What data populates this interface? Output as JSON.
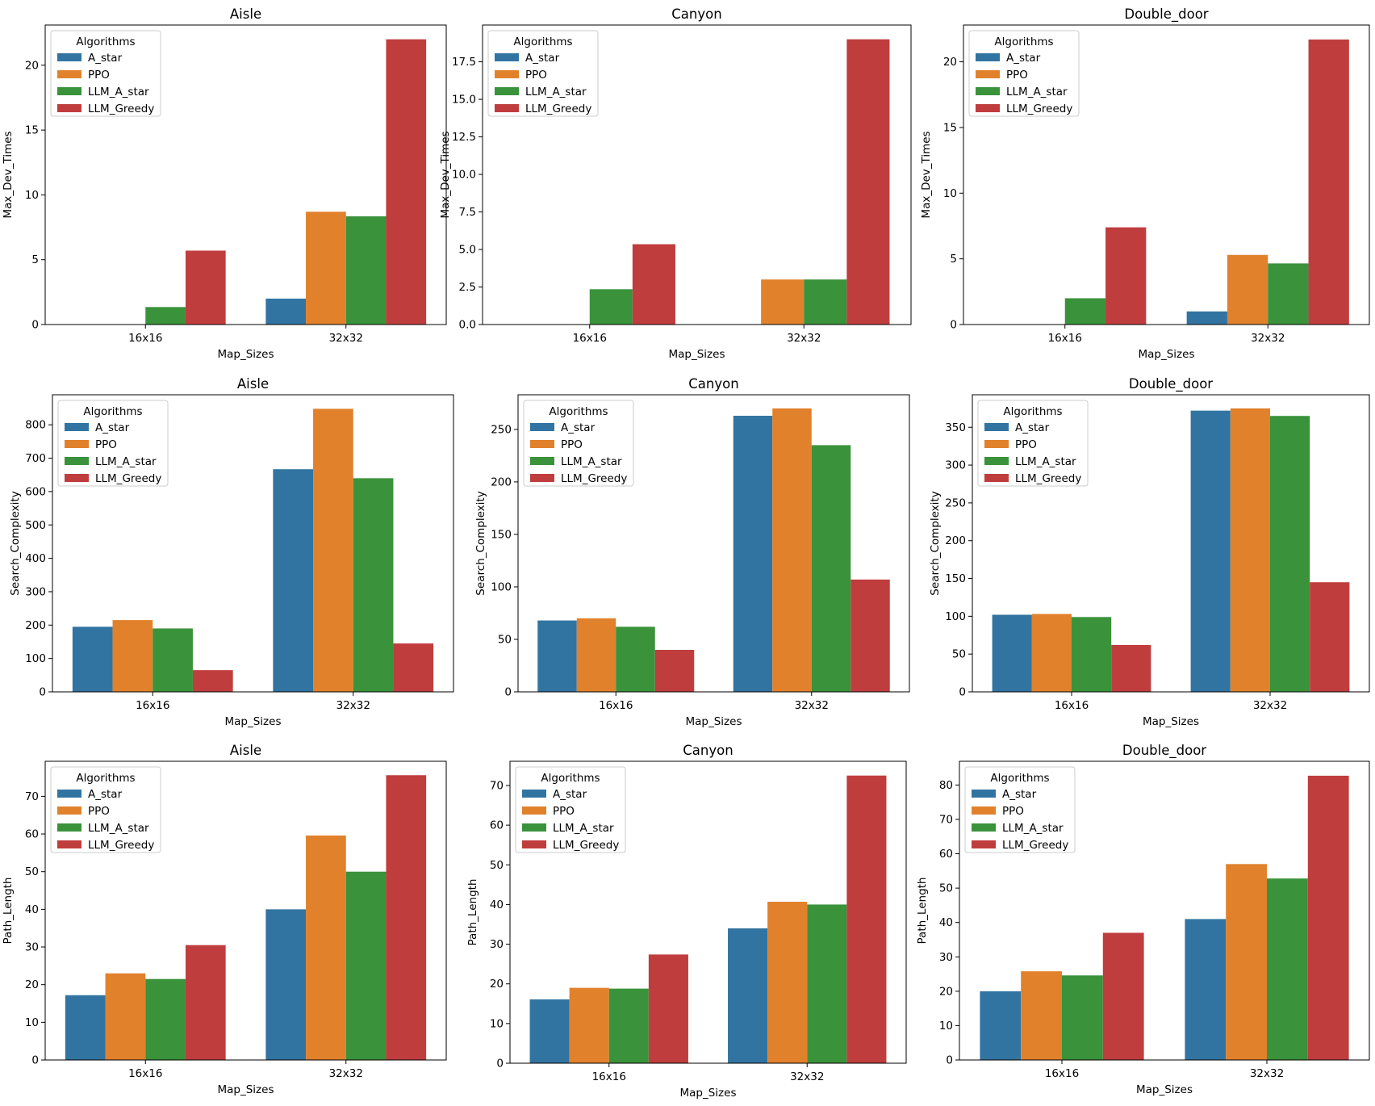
{
  "chart_data": [
    {
      "type": "bar",
      "title": "Aisle",
      "xlabel": "Map_Sizes",
      "ylabel": "Max_Dev_Times",
      "categories": [
        "16x16",
        "32x32"
      ],
      "ylim": [
        0,
        23.1
      ],
      "yticks": [
        "0",
        "5",
        "10",
        "15",
        "20"
      ],
      "legend": {
        "title": "Algorithms",
        "placement": "upper-left"
      },
      "series": [
        {
          "name": "A_star",
          "color": "#3274a1",
          "values": [
            0,
            2.0
          ]
        },
        {
          "name": "PPO",
          "color": "#e1812c",
          "values": [
            0,
            8.7
          ]
        },
        {
          "name": "LLM_A_star",
          "color": "#3a923a",
          "values": [
            1.35,
            8.35
          ]
        },
        {
          "name": "LLM_Greedy",
          "color": "#c03d3e",
          "values": [
            5.7,
            22.0
          ]
        }
      ]
    },
    {
      "type": "bar",
      "title": "Canyon",
      "xlabel": "Map_Sizes",
      "ylabel": "Max_Dev_Times",
      "categories": [
        "16x16",
        "32x32"
      ],
      "ylim": [
        0,
        19.95
      ],
      "yticks": [
        "0.0",
        "2.5",
        "5.0",
        "7.5",
        "10.0",
        "12.5",
        "15.0",
        "17.5"
      ],
      "legend": {
        "title": "Algorithms",
        "placement": "upper-left"
      },
      "series": [
        {
          "name": "A_star",
          "color": "#3274a1",
          "values": [
            0,
            0
          ]
        },
        {
          "name": "PPO",
          "color": "#e1812c",
          "values": [
            0,
            3.0
          ]
        },
        {
          "name": "LLM_A_star",
          "color": "#3a923a",
          "values": [
            2.35,
            3.0
          ]
        },
        {
          "name": "LLM_Greedy",
          "color": "#c03d3e",
          "values": [
            5.35,
            19.0
          ]
        }
      ]
    },
    {
      "type": "bar",
      "title": "Double_door",
      "xlabel": "Map_Sizes",
      "ylabel": "Max_Dev_Times",
      "categories": [
        "16x16",
        "32x32"
      ],
      "ylim": [
        0,
        22.8
      ],
      "yticks": [
        "0",
        "5",
        "10",
        "15",
        "20"
      ],
      "legend": {
        "title": "Algorithms",
        "placement": "upper-left"
      },
      "series": [
        {
          "name": "A_star",
          "color": "#3274a1",
          "values": [
            0,
            1.0
          ]
        },
        {
          "name": "PPO",
          "color": "#e1812c",
          "values": [
            0,
            5.3
          ]
        },
        {
          "name": "LLM_A_star",
          "color": "#3a923a",
          "values": [
            2.0,
            4.65
          ]
        },
        {
          "name": "LLM_Greedy",
          "color": "#c03d3e",
          "values": [
            7.4,
            21.7
          ]
        }
      ]
    },
    {
      "type": "bar",
      "title": "Aisle",
      "xlabel": "Map_Sizes",
      "ylabel": "Search_Complexity",
      "categories": [
        "16x16",
        "32x32"
      ],
      "ylim": [
        0,
        890
      ],
      "yticks": [
        "0",
        "100",
        "200",
        "300",
        "400",
        "500",
        "600",
        "700",
        "800"
      ],
      "legend": {
        "title": "Algorithms",
        "placement": "upper-left"
      },
      "series": [
        {
          "name": "A_star",
          "color": "#3274a1",
          "values": [
            195,
            667
          ]
        },
        {
          "name": "PPO",
          "color": "#e1812c",
          "values": [
            215,
            848
          ]
        },
        {
          "name": "LLM_A_star",
          "color": "#3a923a",
          "values": [
            190,
            640
          ]
        },
        {
          "name": "LLM_Greedy",
          "color": "#c03d3e",
          "values": [
            65,
            145
          ]
        }
      ]
    },
    {
      "type": "bar",
      "title": "Canyon",
      "xlabel": "Map_Sizes",
      "ylabel": "Search_Complexity",
      "categories": [
        "16x16",
        "32x32"
      ],
      "ylim": [
        0,
        283
      ],
      "yticks": [
        "0",
        "50",
        "100",
        "150",
        "200",
        "250"
      ],
      "legend": {
        "title": "Algorithms",
        "placement": "upper-left"
      },
      "series": [
        {
          "name": "A_star",
          "color": "#3274a1",
          "values": [
            68,
            263
          ]
        },
        {
          "name": "PPO",
          "color": "#e1812c",
          "values": [
            70,
            270
          ]
        },
        {
          "name": "LLM_A_star",
          "color": "#3a923a",
          "values": [
            62,
            235
          ]
        },
        {
          "name": "LLM_Greedy",
          "color": "#c03d3e",
          "values": [
            40,
            107
          ]
        }
      ]
    },
    {
      "type": "bar",
      "title": "Double_door",
      "xlabel": "Map_Sizes",
      "ylabel": "Search_Complexity",
      "categories": [
        "16x16",
        "32x32"
      ],
      "ylim": [
        0,
        393
      ],
      "yticks": [
        "0",
        "50",
        "100",
        "150",
        "200",
        "250",
        "300",
        "350"
      ],
      "legend": {
        "title": "Algorithms",
        "placement": "upper-left"
      },
      "series": [
        {
          "name": "A_star",
          "color": "#3274a1",
          "values": [
            102,
            372
          ]
        },
        {
          "name": "PPO",
          "color": "#e1812c",
          "values": [
            103,
            375
          ]
        },
        {
          "name": "LLM_A_star",
          "color": "#3a923a",
          "values": [
            99,
            365
          ]
        },
        {
          "name": "LLM_Greedy",
          "color": "#c03d3e",
          "values": [
            62,
            145
          ]
        }
      ]
    },
    {
      "type": "bar",
      "title": "Aisle",
      "xlabel": "Map_Sizes",
      "ylabel": "Path_Length",
      "categories": [
        "16x16",
        "32x32"
      ],
      "ylim": [
        0,
        79.3
      ],
      "yticks": [
        "0",
        "10",
        "20",
        "30",
        "40",
        "50",
        "60",
        "70"
      ],
      "legend": {
        "title": "Algorithms",
        "placement": "upper-left"
      },
      "series": [
        {
          "name": "A_star",
          "color": "#3274a1",
          "values": [
            17.2,
            40
          ]
        },
        {
          "name": "PPO",
          "color": "#e1812c",
          "values": [
            23,
            59.6
          ]
        },
        {
          "name": "LLM_A_star",
          "color": "#3a923a",
          "values": [
            21.5,
            50
          ]
        },
        {
          "name": "LLM_Greedy",
          "color": "#c03d3e",
          "values": [
            30.5,
            75.6
          ]
        }
      ]
    },
    {
      "type": "bar",
      "title": "Canyon",
      "xlabel": "Map_Sizes",
      "ylabel": "Path_Length",
      "categories": [
        "16x16",
        "32x32"
      ],
      "ylim": [
        0,
        76.1
      ],
      "yticks": [
        "0",
        "10",
        "20",
        "30",
        "40",
        "50",
        "60",
        "70"
      ],
      "legend": {
        "title": "Algorithms",
        "placement": "upper-left"
      },
      "series": [
        {
          "name": "A_star",
          "color": "#3274a1",
          "values": [
            16.1,
            34
          ]
        },
        {
          "name": "PPO",
          "color": "#e1812c",
          "values": [
            19,
            40.7
          ]
        },
        {
          "name": "LLM_A_star",
          "color": "#3a923a",
          "values": [
            18.8,
            40
          ]
        },
        {
          "name": "LLM_Greedy",
          "color": "#c03d3e",
          "values": [
            27.4,
            72.5
          ]
        }
      ]
    },
    {
      "type": "bar",
      "title": "Double_door",
      "xlabel": "Map_Sizes",
      "ylabel": "Path_Length",
      "categories": [
        "16x16",
        "32x32"
      ],
      "ylim": [
        0,
        86.9
      ],
      "yticks": [
        "0",
        "10",
        "20",
        "30",
        "40",
        "50",
        "60",
        "70",
        "80"
      ],
      "legend": {
        "title": "Algorithms",
        "placement": "upper-left"
      },
      "series": [
        {
          "name": "A_star",
          "color": "#3274a1",
          "values": [
            20,
            41
          ]
        },
        {
          "name": "PPO",
          "color": "#e1812c",
          "values": [
            25.8,
            57
          ]
        },
        {
          "name": "LLM_A_star",
          "color": "#3a923a",
          "values": [
            24.6,
            52.8
          ]
        },
        {
          "name": "LLM_Greedy",
          "color": "#c03d3e",
          "values": [
            37,
            82.7
          ]
        }
      ]
    }
  ]
}
